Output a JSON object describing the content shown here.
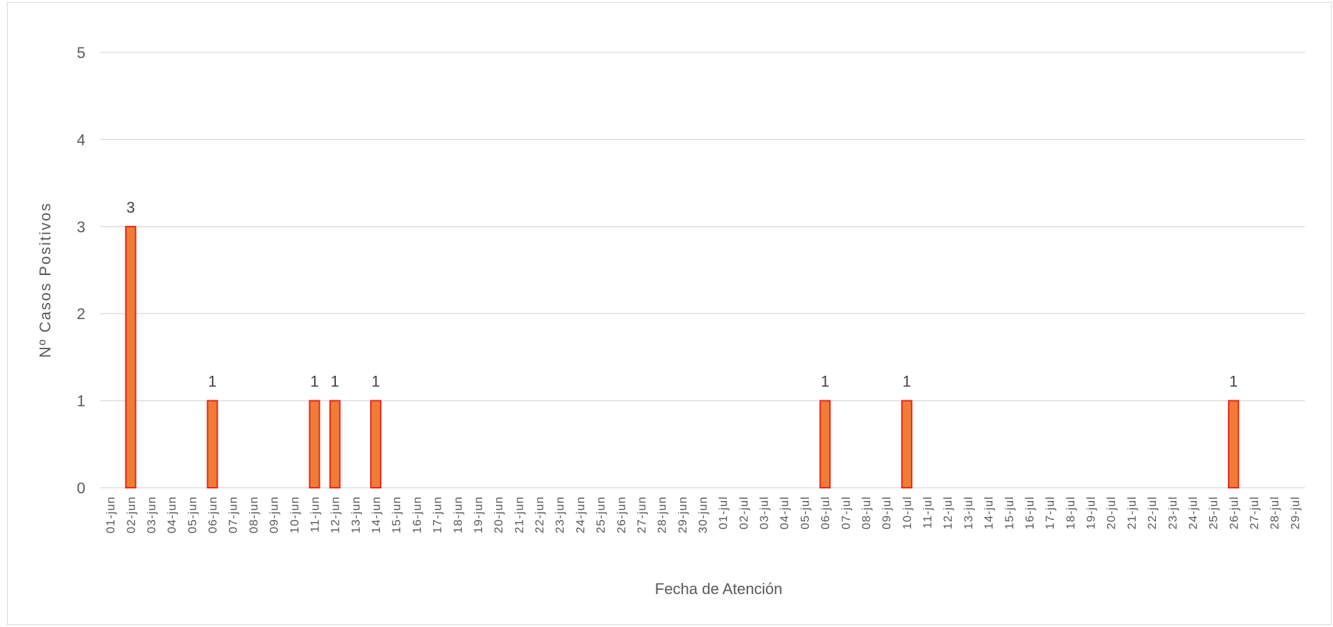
{
  "chart_data": {
    "type": "bar",
    "title": "",
    "xlabel": "Fecha de Atención",
    "ylabel": "Nº  Casos Positivos",
    "ylim": [
      0,
      5
    ],
    "yticks": [
      0,
      1,
      2,
      3,
      4,
      5
    ],
    "grid": true,
    "legend": "none",
    "colors": {
      "bar_fill": "#F07C35",
      "bar_stroke": "#E8261C",
      "grid": "#d9d9d9",
      "text": "#595959"
    },
    "categories": [
      "01-jun",
      "02-jun",
      "03-jun",
      "04-jun",
      "05-jun",
      "06-jun",
      "07-jun",
      "08-jun",
      "09-jun",
      "10-jun",
      "11-jun",
      "12-jun",
      "13-jun",
      "14-jun",
      "15-jun",
      "16-jun",
      "17-jun",
      "18-jun",
      "19-jun",
      "20-jun",
      "21-jun",
      "22-jun",
      "23-jun",
      "24-jun",
      "25-jun",
      "26-jun",
      "27-jun",
      "28-jun",
      "29-jun",
      "30-jun",
      "01-jul",
      "02-jul",
      "03-jul",
      "04-jul",
      "05-jul",
      "06-jul",
      "07-jul",
      "08-jul",
      "09-jul",
      "10-jul",
      "11-jul",
      "12-jul",
      "13-jul",
      "14-jul",
      "15-jul",
      "16-jul",
      "17-jul",
      "18-jul",
      "19-jul",
      "20-jul",
      "21-jul",
      "22-jul",
      "23-jul",
      "24-jul",
      "25-jul",
      "26-jul",
      "27-jul",
      "28-jul",
      "29-jul"
    ],
    "values": [
      0,
      3,
      0,
      0,
      0,
      1,
      0,
      0,
      0,
      0,
      1,
      1,
      0,
      1,
      0,
      0,
      0,
      0,
      0,
      0,
      0,
      0,
      0,
      0,
      0,
      0,
      0,
      0,
      0,
      0,
      0,
      0,
      0,
      0,
      0,
      1,
      0,
      0,
      0,
      1,
      0,
      0,
      0,
      0,
      0,
      0,
      0,
      0,
      0,
      0,
      0,
      0,
      0,
      0,
      0,
      1,
      0,
      0,
      0
    ],
    "data_labels": true
  }
}
